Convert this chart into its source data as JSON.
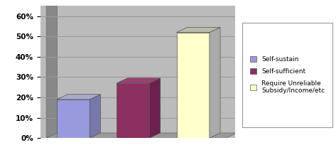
{
  "values": [
    0.19,
    0.27,
    0.52
  ],
  "bar_colors": [
    "#9999DD",
    "#8B3060",
    "#FFFFCC"
  ],
  "bar_right_colors": [
    "#7777AA",
    "#6B2050",
    "#AAAAAA"
  ],
  "bar_top_colors": [
    "#AAAACC",
    "#9B4070",
    "#BBBBAA"
  ],
  "wall_color": "#AAAAAA",
  "wall_dark_color": "#888888",
  "floor_color": "#999999",
  "legend_labels": [
    "Self-sustain",
    "Self-sufficient",
    "Require Unreliable\nSubsidy/Income/etc"
  ],
  "legend_colors": [
    "#9999DD",
    "#8B3060",
    "#FFFFCC"
  ],
  "ylim": [
    0,
    0.65
  ],
  "yticks": [
    0.0,
    0.1,
    0.2,
    0.3,
    0.4,
    0.5,
    0.6
  ],
  "ytick_labels": [
    "0%",
    "10%",
    "20%",
    "30%",
    "40%",
    "50%",
    "60%"
  ],
  "bg_color": "#FFFFFF",
  "plot_bg_color": "#BBBBBB",
  "grid_color": "#999999"
}
